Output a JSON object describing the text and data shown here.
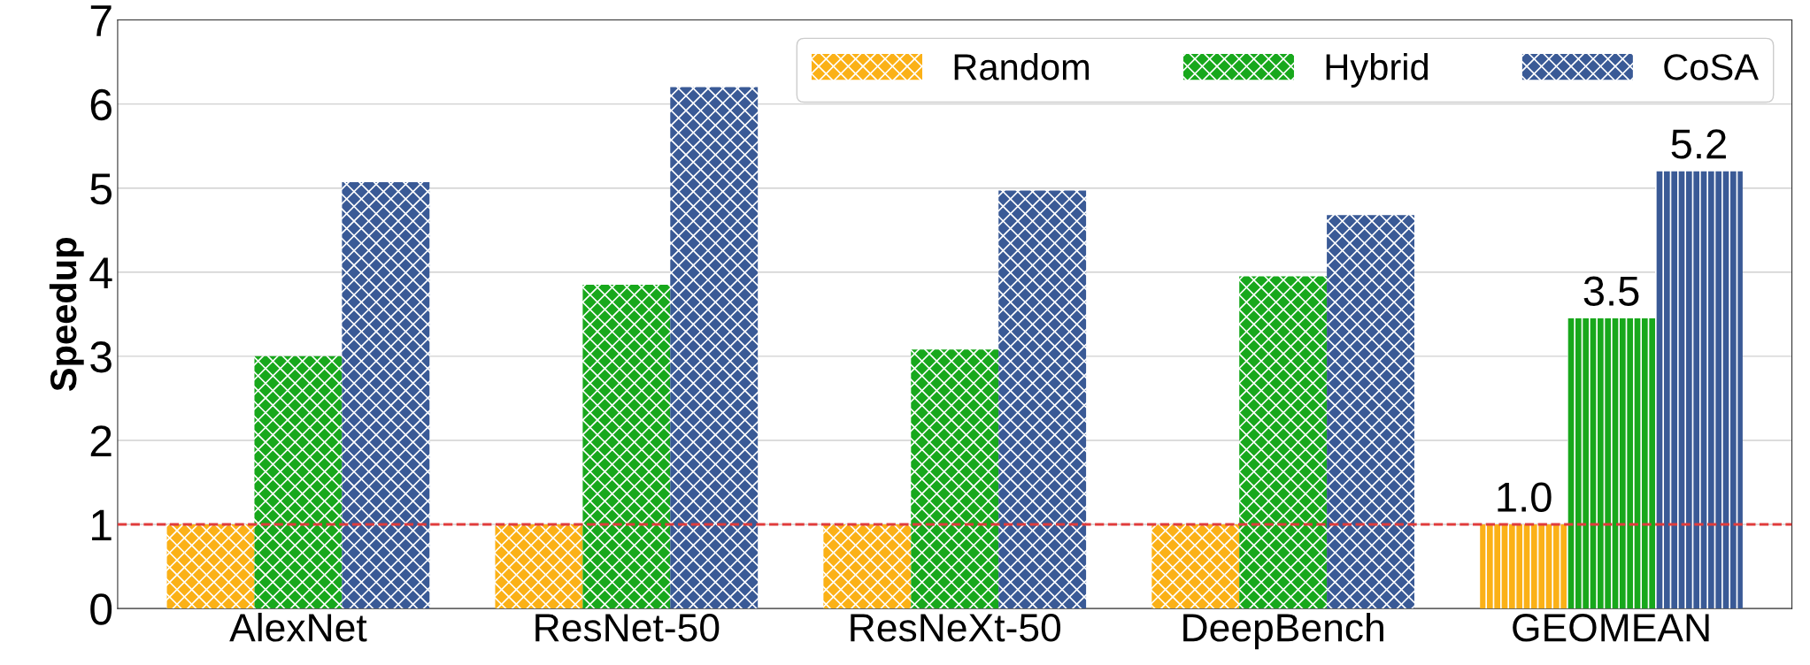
{
  "chart_data": {
    "type": "bar",
    "ylabel": "Speedup",
    "categories": [
      "AlexNet",
      "ResNet-50",
      "ResNeXt-50",
      "DeepBench",
      "GEOMEAN"
    ],
    "series": [
      {
        "name": "Random",
        "color": "#fbb117",
        "values": [
          1.0,
          1.0,
          1.0,
          1.0,
          1.0
        ],
        "value_labels": [
          null,
          null,
          null,
          null,
          "1.0"
        ]
      },
      {
        "name": "Hybrid",
        "color": "#18a81c",
        "values": [
          3.0,
          3.85,
          3.08,
          3.95,
          3.45
        ],
        "value_labels": [
          null,
          null,
          null,
          null,
          "3.5"
        ]
      },
      {
        "name": "CoSA",
        "color": "#3a5a96",
        "values": [
          5.07,
          6.2,
          4.97,
          4.68,
          5.2
        ],
        "value_labels": [
          null,
          null,
          null,
          null,
          "5.2"
        ]
      }
    ],
    "ylim": [
      0,
      7
    ],
    "yticks": [
      0,
      1,
      2,
      3,
      4,
      5,
      6,
      7
    ],
    "grid": "y",
    "legend": "top right",
    "ref_lines": [
      {
        "axis": "y",
        "value": 1,
        "color": "#e03c3c",
        "line_style": "dashed"
      }
    ]
  }
}
